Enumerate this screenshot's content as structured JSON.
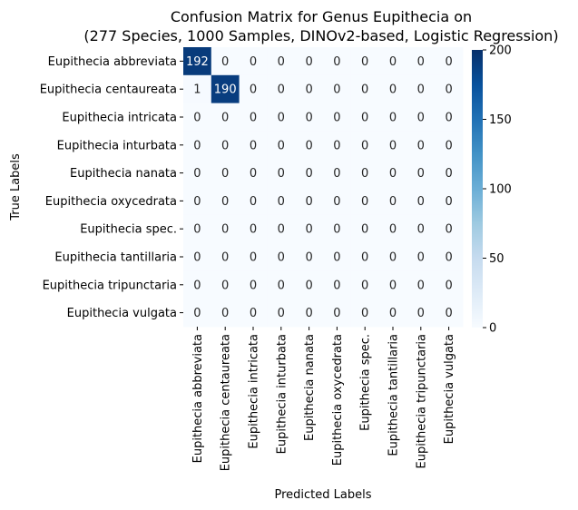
{
  "chart_data": {
    "type": "heatmap",
    "title_lines": [
      "Confusion Matrix for Genus Eupithecia on",
      "(277 Species, 1000 Samples, DINOv2-based, Logistic Regression)"
    ],
    "xlabel": "Predicted Labels",
    "ylabel": "True Labels",
    "row_labels": [
      "Eupithecia abbreviata",
      "Eupithecia centaureata",
      "Eupithecia intricata",
      "Eupithecia inturbata",
      "Eupithecia nanata",
      "Eupithecia oxycedrata",
      "Eupithecia spec.",
      "Eupithecia tantillaria",
      "Eupithecia tripunctaria",
      "Eupithecia vulgata"
    ],
    "col_labels": [
      "Eupithecia abbreviata",
      "Eupithecia centaureata",
      "Eupithecia intricata",
      "Eupithecia inturbata",
      "Eupithecia nanata",
      "Eupithecia oxycedrata",
      "Eupithecia spec.",
      "Eupithecia tantillaria",
      "Eupithecia tripunctaria",
      "Eupithecia vulgata"
    ],
    "values": [
      [
        192,
        0,
        0,
        0,
        0,
        0,
        0,
        0,
        0,
        0
      ],
      [
        1,
        190,
        0,
        0,
        0,
        0,
        0,
        0,
        0,
        0
      ],
      [
        0,
        0,
        0,
        0,
        0,
        0,
        0,
        0,
        0,
        0
      ],
      [
        0,
        0,
        0,
        0,
        0,
        0,
        0,
        0,
        0,
        0
      ],
      [
        0,
        0,
        0,
        0,
        0,
        0,
        0,
        0,
        0,
        0
      ],
      [
        0,
        0,
        0,
        0,
        0,
        0,
        0,
        0,
        0,
        0
      ],
      [
        0,
        0,
        0,
        0,
        0,
        0,
        0,
        0,
        0,
        0
      ],
      [
        0,
        0,
        0,
        0,
        0,
        0,
        0,
        0,
        0,
        0
      ],
      [
        0,
        0,
        0,
        0,
        0,
        0,
        0,
        0,
        0,
        0
      ],
      [
        0,
        0,
        0,
        0,
        0,
        0,
        0,
        0,
        0,
        0
      ]
    ],
    "colorbar": {
      "range": [
        0,
        200
      ],
      "ticks": [
        0,
        50,
        100,
        150,
        200
      ],
      "colormap": "Blues",
      "colors": [
        "#f7fbff",
        "#deebf7",
        "#c6dbef",
        "#9ecae1",
        "#6baed6",
        "#4292c6",
        "#2171b5",
        "#08519c",
        "#08306b"
      ]
    },
    "annotations": true,
    "grid": false
  }
}
